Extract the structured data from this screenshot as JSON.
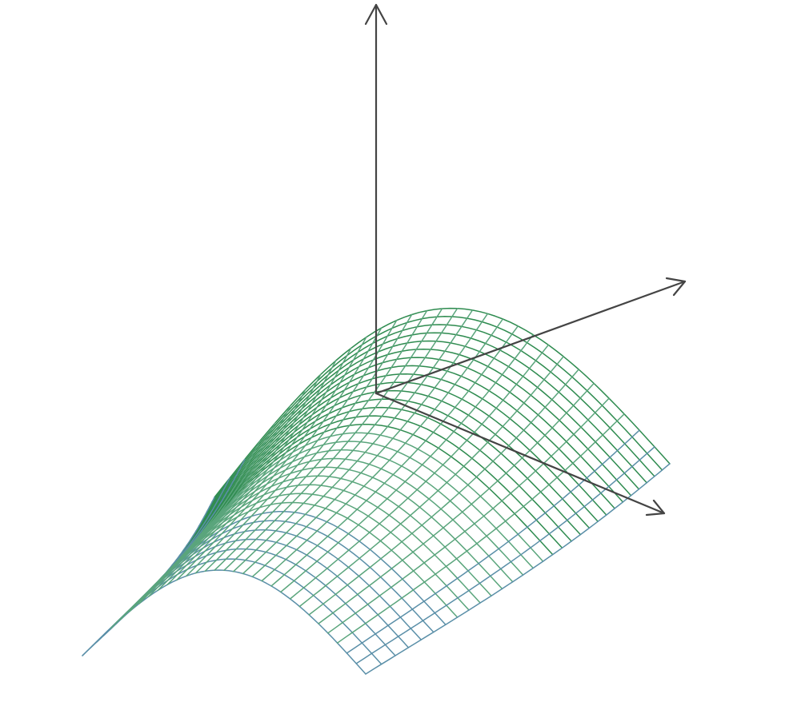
{
  "diagram": {
    "type": "3d-wireframe-surface",
    "axes": {
      "count": 3,
      "labels": [],
      "color": "#444444"
    },
    "surface": {
      "shape": "arched surface bending down toward the front edges",
      "grid_lines_across": 31,
      "grid_lines_along": 31,
      "colors": {
        "top": "#2e8b4f",
        "mid": "#5aa57c",
        "edge": "#5a8fa8"
      }
    }
  }
}
